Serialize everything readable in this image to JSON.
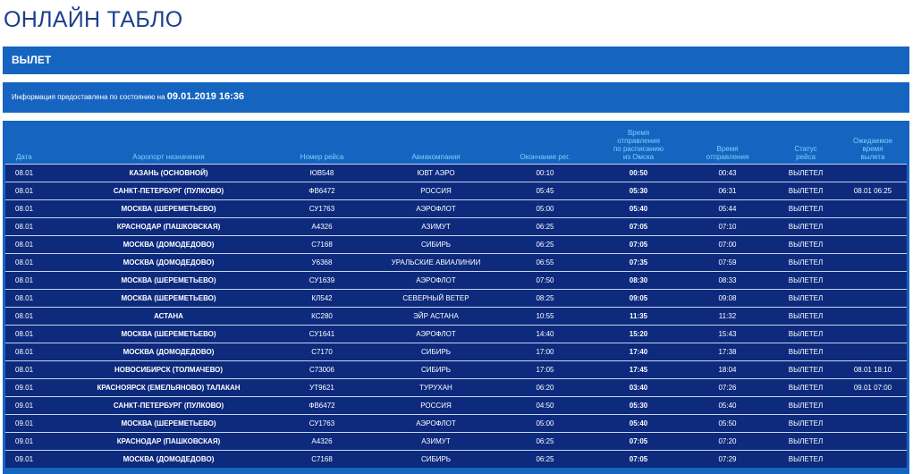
{
  "page": {
    "title": "ОНЛАЙН ТАБЛО"
  },
  "section": {
    "label": "ВЫЛЕТ"
  },
  "info": {
    "prefix": "Информация предоставлена по состоянию на",
    "datetime": "09.01.2019 16:36"
  },
  "columns": {
    "date": "Дата",
    "airport": "Аэропорт назначения",
    "flight": "Номер рейса",
    "airline": "Авиакомпания",
    "checkin_end": "Окончание рег.",
    "sched_l1": "Время",
    "sched_l2": "отправления",
    "sched_l3": "по расписанию",
    "sched_l4": "из Омска",
    "dep_l1": "Время",
    "dep_l2": "отправления",
    "status_l1": "Статус",
    "status_l2": "рейса",
    "exp_l1": "Ожидаемое",
    "exp_l2": "время",
    "exp_l3": "вылета"
  },
  "flights": [
    {
      "date": "08.01",
      "airport": "КАЗАНЬ (ОСНОВНОЙ)",
      "flight": "ЮВ548",
      "airline": "ЮВТ АЭРО",
      "checkin_end": "00:10",
      "scheduled": "00:50",
      "departure": "00:43",
      "status": "ВЫЛЕТЕЛ",
      "expected": ""
    },
    {
      "date": "08.01",
      "airport": "САНКТ-ПЕТЕРБУРГ (ПУЛКОВО)",
      "flight": "ФВ6472",
      "airline": "РОССИЯ",
      "checkin_end": "05:45",
      "scheduled": "05:30",
      "departure": "06:31",
      "status": "ВЫЛЕТЕЛ",
      "expected": "08.01 06:25"
    },
    {
      "date": "08.01",
      "airport": "МОСКВА (ШЕРЕМЕТЬЕВО)",
      "flight": "СУ1763",
      "airline": "АЭРОФЛОТ",
      "checkin_end": "05:00",
      "scheduled": "05:40",
      "departure": "05:44",
      "status": "ВЫЛЕТЕЛ",
      "expected": ""
    },
    {
      "date": "08.01",
      "airport": "КРАСНОДАР (ПАШКОВСКАЯ)",
      "flight": "А4326",
      "airline": "АЗИМУТ",
      "checkin_end": "06:25",
      "scheduled": "07:05",
      "departure": "07:10",
      "status": "ВЫЛЕТЕЛ",
      "expected": ""
    },
    {
      "date": "08.01",
      "airport": "МОСКВА (ДОМОДЕДОВО)",
      "flight": "С7168",
      "airline": "СИБИРЬ",
      "checkin_end": "06:25",
      "scheduled": "07:05",
      "departure": "07:00",
      "status": "ВЫЛЕТЕЛ",
      "expected": ""
    },
    {
      "date": "08.01",
      "airport": "МОСКВА (ДОМОДЕДОВО)",
      "flight": "У6368",
      "airline": "УРАЛЬСКИЕ АВИАЛИНИИ",
      "checkin_end": "06:55",
      "scheduled": "07:35",
      "departure": "07:59",
      "status": "ВЫЛЕТЕЛ",
      "expected": ""
    },
    {
      "date": "08.01",
      "airport": "МОСКВА (ШЕРЕМЕТЬЕВО)",
      "flight": "СУ1639",
      "airline": "АЭРОФЛОТ",
      "checkin_end": "07:50",
      "scheduled": "08:30",
      "departure": "08:33",
      "status": "ВЫЛЕТЕЛ",
      "expected": ""
    },
    {
      "date": "08.01",
      "airport": "МОСКВА (ШЕРЕМЕТЬЕВО)",
      "flight": "КЛ542",
      "airline": "СЕВЕРНЫЙ ВЕТЕР",
      "checkin_end": "08:25",
      "scheduled": "09:05",
      "departure": "09:08",
      "status": "ВЫЛЕТЕЛ",
      "expected": ""
    },
    {
      "date": "08.01",
      "airport": "АСТАНА",
      "flight": "КС280",
      "airline": "ЭЙР АСТАНА",
      "checkin_end": "10:55",
      "scheduled": "11:35",
      "departure": "11:32",
      "status": "ВЫЛЕТЕЛ",
      "expected": ""
    },
    {
      "date": "08.01",
      "airport": "МОСКВА (ШЕРЕМЕТЬЕВО)",
      "flight": "СУ1641",
      "airline": "АЭРОФЛОТ",
      "checkin_end": "14:40",
      "scheduled": "15:20",
      "departure": "15:43",
      "status": "ВЫЛЕТЕЛ",
      "expected": ""
    },
    {
      "date": "08.01",
      "airport": "МОСКВА (ДОМОДЕДОВО)",
      "flight": "С7170",
      "airline": "СИБИРЬ",
      "checkin_end": "17:00",
      "scheduled": "17:40",
      "departure": "17:38",
      "status": "ВЫЛЕТЕЛ",
      "expected": ""
    },
    {
      "date": "08.01",
      "airport": "НОВОСИБИРСК (ТОЛМАЧЕВО)",
      "flight": "С73006",
      "airline": "СИБИРЬ",
      "checkin_end": "17:05",
      "scheduled": "17:45",
      "departure": "18:04",
      "status": "ВЫЛЕТЕЛ",
      "expected": "08.01 18:10"
    },
    {
      "date": "09.01",
      "airport": "КРАСНОЯРСК (ЕМЕЛЬЯНОВО) ТАЛАКАН",
      "flight": "УТ9621",
      "airline": "ТУРУХАН",
      "checkin_end": "06:20",
      "scheduled": "03:40",
      "departure": "07:26",
      "status": "ВЫЛЕТЕЛ",
      "expected": "09.01 07:00"
    },
    {
      "date": "09.01",
      "airport": "САНКТ-ПЕТЕРБУРГ (ПУЛКОВО)",
      "flight": "ФВ6472",
      "airline": "РОССИЯ",
      "checkin_end": "04:50",
      "scheduled": "05:30",
      "departure": "05:40",
      "status": "ВЫЛЕТЕЛ",
      "expected": ""
    },
    {
      "date": "09.01",
      "airport": "МОСКВА (ШЕРЕМЕТЬЕВО)",
      "flight": "СУ1763",
      "airline": "АЭРОФЛОТ",
      "checkin_end": "05:00",
      "scheduled": "05:40",
      "departure": "05:50",
      "status": "ВЫЛЕТЕЛ",
      "expected": ""
    },
    {
      "date": "09.01",
      "airport": "КРАСНОДАР (ПАШКОВСКАЯ)",
      "flight": "А4326",
      "airline": "АЗИМУТ",
      "checkin_end": "06:25",
      "scheduled": "07:05",
      "departure": "07:20",
      "status": "ВЫЛЕТЕЛ",
      "expected": ""
    },
    {
      "date": "09.01",
      "airport": "МОСКВА (ДОМОДЕДОВО)",
      "flight": "С7168",
      "airline": "СИБИРЬ",
      "checkin_end": "06:25",
      "scheduled": "07:05",
      "departure": "07:29",
      "status": "ВЫЛЕТЕЛ",
      "expected": ""
    }
  ]
}
